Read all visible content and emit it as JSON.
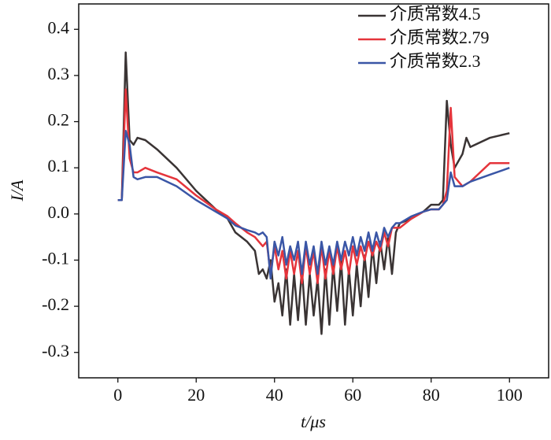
{
  "chart_data": {
    "type": "line",
    "xlabel": "t/μs",
    "ylabel": "I/A",
    "xlim": [
      -10,
      110
    ],
    "xticks": [
      0,
      20,
      40,
      60,
      80,
      100
    ],
    "ylim": [
      -0.355,
      0.455
    ],
    "yticks": [
      -0.3,
      -0.2,
      -0.1,
      {
        "value": 0,
        "label": "0.0"
      },
      0.1,
      0.2,
      0.3,
      0.4
    ],
    "legend": "upper right",
    "x": [
      0,
      1,
      2,
      3,
      4,
      5,
      7,
      10,
      15,
      20,
      25,
      28,
      30,
      33,
      35,
      36,
      37,
      38,
      39,
      40,
      41,
      42,
      43,
      44,
      45,
      46,
      47,
      48,
      49,
      50,
      51,
      52,
      53,
      54,
      55,
      56,
      57,
      58,
      59,
      60,
      61,
      62,
      63,
      64,
      65,
      66,
      67,
      68,
      69,
      70,
      71,
      72,
      75,
      78,
      80,
      82,
      83,
      84,
      85,
      86,
      88,
      89,
      90,
      95,
      100
    ],
    "series": [
      {
        "name": "介质常数4.5",
        "color": "#3a3434",
        "values": [
          0.03,
          0.03,
          0.35,
          0.16,
          0.15,
          0.165,
          0.16,
          0.14,
          0.1,
          0.05,
          0.01,
          -0.01,
          -0.04,
          -0.06,
          -0.08,
          -0.13,
          -0.12,
          -0.14,
          -0.1,
          -0.19,
          -0.15,
          -0.22,
          -0.12,
          -0.24,
          -0.13,
          -0.23,
          -0.12,
          -0.24,
          -0.13,
          -0.22,
          -0.14,
          -0.26,
          -0.12,
          -0.24,
          -0.11,
          -0.21,
          -0.1,
          -0.24,
          -0.12,
          -0.22,
          -0.11,
          -0.2,
          -0.09,
          -0.18,
          -0.07,
          -0.15,
          -0.06,
          -0.12,
          -0.05,
          -0.13,
          -0.04,
          -0.02,
          -0.01,
          0.005,
          0.02,
          0.02,
          0.03,
          0.245,
          0.15,
          0.1,
          0.13,
          0.165,
          0.145,
          0.165,
          0.175
        ]
      },
      {
        "name": "介质常数2.79",
        "color": "#e5343b",
        "values": [
          0.03,
          0.03,
          0.27,
          0.12,
          0.09,
          0.09,
          0.1,
          0.09,
          0.075,
          0.04,
          0.01,
          -0.005,
          -0.02,
          -0.04,
          -0.05,
          -0.06,
          -0.07,
          -0.06,
          -0.13,
          -0.07,
          -0.12,
          -0.08,
          -0.14,
          -0.08,
          -0.13,
          -0.08,
          -0.15,
          -0.07,
          -0.13,
          -0.08,
          -0.15,
          -0.07,
          -0.14,
          -0.08,
          -0.13,
          -0.07,
          -0.12,
          -0.08,
          -0.13,
          -0.07,
          -0.11,
          -0.07,
          -0.1,
          -0.06,
          -0.09,
          -0.06,
          -0.08,
          -0.04,
          -0.07,
          -0.03,
          -0.03,
          -0.03,
          -0.01,
          0.005,
          0.01,
          0.01,
          0.02,
          0.05,
          0.23,
          0.08,
          0.06,
          0.065,
          0.07,
          0.11,
          0.11
        ]
      },
      {
        "name": "介质常数2.3",
        "color": "#3a56a6",
        "values": [
          0.03,
          0.03,
          0.18,
          0.15,
          0.08,
          0.075,
          0.08,
          0.08,
          0.06,
          0.03,
          0.005,
          -0.01,
          -0.025,
          -0.035,
          -0.04,
          -0.045,
          -0.04,
          -0.05,
          -0.14,
          -0.06,
          -0.09,
          -0.05,
          -0.11,
          -0.07,
          -0.1,
          -0.06,
          -0.13,
          -0.06,
          -0.11,
          -0.07,
          -0.13,
          -0.06,
          -0.11,
          -0.07,
          -0.11,
          -0.06,
          -0.1,
          -0.06,
          -0.09,
          -0.05,
          -0.09,
          -0.05,
          -0.08,
          -0.04,
          -0.08,
          -0.04,
          -0.07,
          -0.03,
          -0.05,
          -0.03,
          -0.02,
          -0.02,
          -0.005,
          0.005,
          0.01,
          0.01,
          0.02,
          0.03,
          0.09,
          0.06,
          0.06,
          0.065,
          0.07,
          0.085,
          0.1
        ]
      }
    ]
  }
}
